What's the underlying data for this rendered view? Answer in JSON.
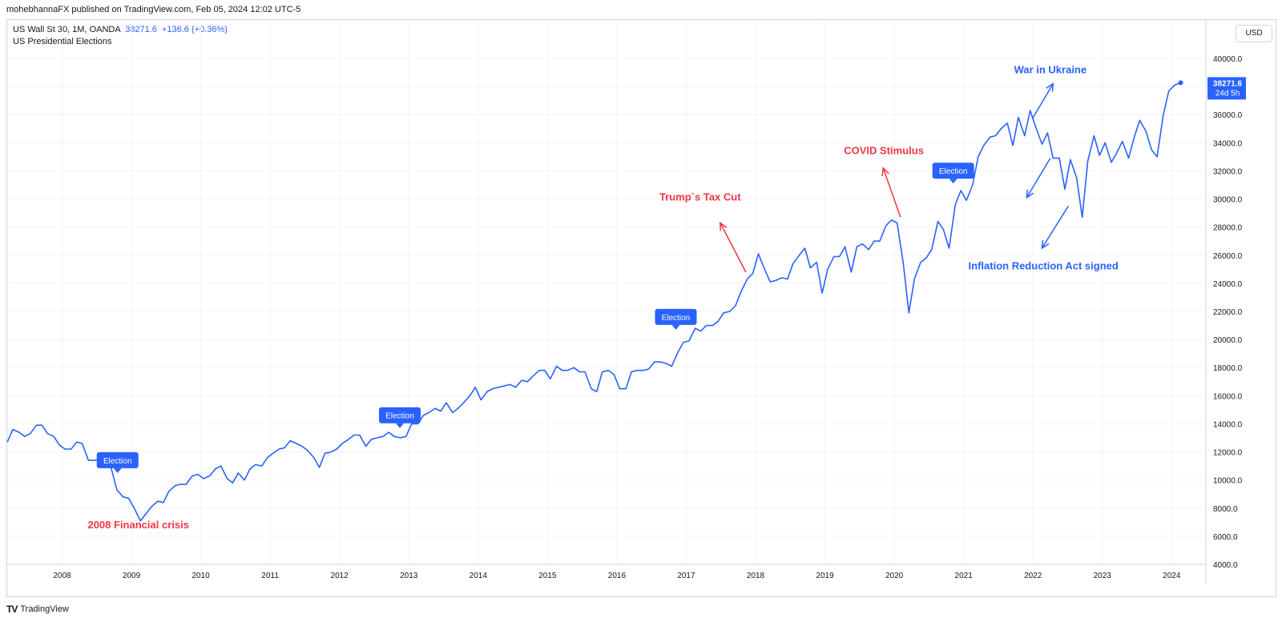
{
  "header": {
    "publisher": "mohebhannaFX published on TradingView.com, Feb 05, 2024 12:02 UTC-5"
  },
  "legend": {
    "symbol": "US Wall St 30, 1M, OANDA",
    "price": "38271.6",
    "change": "+136.6 (+0.36%)",
    "indicator": "US Presidential Elections"
  },
  "currency_button": "USD",
  "footer": {
    "brand": "TradingView",
    "logo": "TV"
  },
  "colors": {
    "line": "#2962ff",
    "red": "#f23645",
    "grid": "#f0f3fa",
    "label": "#2962ff"
  },
  "chart_data": {
    "type": "line",
    "ylim": [
      4000,
      41000
    ],
    "xlim": [
      2007.2,
      2024.45
    ],
    "y_ticks": [
      4000,
      6000,
      8000,
      10000,
      12000,
      14000,
      16000,
      18000,
      20000,
      22000,
      24000,
      26000,
      28000,
      30000,
      32000,
      34000,
      36000,
      38000,
      40000
    ],
    "y_tick_labels": [
      "4000.0",
      "6000.0",
      "8000.0",
      "10000.0",
      "12000.0",
      "14000.0",
      "16000.0",
      "18000.0",
      "20000.0",
      "22000.0",
      "24000.0",
      "26000.0",
      "28000.0",
      "30000.0",
      "32000.0",
      "34000.0",
      "36000.0",
      "38000.0",
      "40000.0"
    ],
    "x_ticks": [
      2008,
      2009,
      2010,
      2011,
      2012,
      2013,
      2014,
      2015,
      2016,
      2017,
      2018,
      2019,
      2020,
      2021,
      2022,
      2023,
      2024
    ],
    "x_tick_labels": [
      "2008",
      "2009",
      "2010",
      "2011",
      "2012",
      "2013",
      "2014",
      "2015",
      "2016",
      "2017",
      "2018",
      "2019",
      "2020",
      "2021",
      "2022",
      "2023",
      "2024"
    ],
    "grid": true,
    "series": [
      {
        "x": [
          2007.21,
          2007.29,
          2007.38,
          2007.46,
          2007.54,
          2007.63,
          2007.71,
          2007.79,
          2007.88,
          2007.96,
          2008.04,
          2008.13,
          2008.21,
          2008.29,
          2008.38,
          2008.46,
          2008.54,
          2008.63,
          2008.71,
          2008.79,
          2008.88,
          2008.96,
          2009.04,
          2009.13,
          2009.21,
          2009.29,
          2009.38,
          2009.46,
          2009.54,
          2009.63,
          2009.71,
          2009.79,
          2009.88,
          2009.96,
          2010.04,
          2010.13,
          2010.21,
          2010.29,
          2010.38,
          2010.46,
          2010.54,
          2010.63,
          2010.71,
          2010.79,
          2010.88,
          2010.96,
          2011.04,
          2011.13,
          2011.21,
          2011.29,
          2011.38,
          2011.46,
          2011.54,
          2011.63,
          2011.71,
          2011.79,
          2011.88,
          2011.96,
          2012.04,
          2012.13,
          2012.21,
          2012.29,
          2012.38,
          2012.46,
          2012.54,
          2012.63,
          2012.71,
          2012.79,
          2012.88,
          2012.96,
          2013.04,
          2013.13,
          2013.21,
          2013.29,
          2013.38,
          2013.46,
          2013.54,
          2013.63,
          2013.71,
          2013.79,
          2013.88,
          2013.96,
          2014.04,
          2014.13,
          2014.21,
          2014.29,
          2014.38,
          2014.46,
          2014.54,
          2014.63,
          2014.71,
          2014.79,
          2014.88,
          2014.96,
          2015.04,
          2015.13,
          2015.21,
          2015.29,
          2015.38,
          2015.46,
          2015.54,
          2015.63,
          2015.71,
          2015.79,
          2015.88,
          2015.96,
          2016.04,
          2016.13,
          2016.21,
          2016.29,
          2016.38,
          2016.46,
          2016.54,
          2016.63,
          2016.71,
          2016.79,
          2016.88,
          2016.96,
          2017.04,
          2017.13,
          2017.21,
          2017.29,
          2017.38,
          2017.46,
          2017.54,
          2017.63,
          2017.71,
          2017.79,
          2017.88,
          2017.96,
          2018.04,
          2018.13,
          2018.21,
          2018.29,
          2018.38,
          2018.46,
          2018.54,
          2018.63,
          2018.71,
          2018.79,
          2018.88,
          2018.96,
          2019.04,
          2019.13,
          2019.21,
          2019.29,
          2019.38,
          2019.46,
          2019.54,
          2019.63,
          2019.71,
          2019.79,
          2019.88,
          2019.96,
          2020.04,
          2020.13,
          2020.21,
          2020.29,
          2020.38,
          2020.46,
          2020.54,
          2020.63,
          2020.71,
          2020.79,
          2020.88,
          2020.96,
          2021.04,
          2021.13,
          2021.21,
          2021.29,
          2021.38,
          2021.46,
          2021.54,
          2021.63,
          2021.71,
          2021.79,
          2021.88,
          2021.96,
          2022.04,
          2022.13,
          2022.21,
          2022.29,
          2022.38,
          2022.46,
          2022.54,
          2022.63,
          2022.71,
          2022.79,
          2022.88,
          2022.96,
          2023.04,
          2023.13,
          2023.21,
          2023.29,
          2023.38,
          2023.46,
          2023.54,
          2023.63,
          2023.71,
          2023.79,
          2023.88,
          2023.96,
          2024.04,
          2024.13
        ],
        "values": [
          12700,
          13600,
          13400,
          13100,
          13300,
          13900,
          13900,
          13300,
          13100,
          12500,
          12200,
          12200,
          12700,
          12600,
          11400,
          11400,
          11500,
          11600,
          10800,
          9300,
          8800,
          8700,
          8000,
          7100,
          7600,
          8100,
          8500,
          8400,
          9200,
          9600,
          9700,
          9700,
          10300,
          10400,
          10100,
          10300,
          10800,
          11000,
          10100,
          9800,
          10500,
          10000,
          10800,
          11100,
          11000,
          11600,
          11900,
          12200,
          12300,
          12800,
          12600,
          12400,
          12100,
          11600,
          10900,
          11900,
          12000,
          12200,
          12600,
          12900,
          13200,
          13200,
          12400,
          12900,
          13000,
          13100,
          13400,
          13100,
          13000,
          13100,
          14000,
          14000,
          14600,
          14800,
          15100,
          14900,
          15500,
          14800,
          15100,
          15500,
          16000,
          16600,
          15700,
          16300,
          16500,
          16600,
          16700,
          16800,
          16600,
          17100,
          17000,
          17400,
          17800,
          17800,
          17200,
          18100,
          17800,
          17800,
          18000,
          17700,
          17700,
          16500,
          16300,
          17700,
          17800,
          17500,
          16500,
          16500,
          17700,
          17800,
          17800,
          17900,
          18400,
          18400,
          18300,
          18100,
          19100,
          19800,
          19900,
          20800,
          20600,
          21000,
          21000,
          21300,
          21900,
          22000,
          22400,
          23400,
          24300,
          24700,
          26100,
          25000,
          24100,
          24200,
          24400,
          24300,
          25400,
          26000,
          26500,
          25100,
          25500,
          23300,
          25000,
          25900,
          25900,
          26600,
          24800,
          26600,
          26800,
          26400,
          27000,
          27000,
          28100,
          28500,
          28300,
          25400,
          21900,
          24300,
          25500,
          25800,
          26400,
          28400,
          27800,
          26500,
          29600,
          30600,
          29900,
          31000,
          33000,
          33800,
          34400,
          34500,
          35000,
          35400,
          33800,
          35800,
          34500,
          36300,
          35100,
          33900,
          34700,
          32900,
          32900,
          30700,
          32800,
          31500,
          28700,
          32700,
          34500,
          33100,
          34000,
          32600,
          33300,
          34100,
          32900,
          34400,
          35600,
          34800,
          33500,
          33000,
          36000,
          37700,
          38100,
          38271.6
        ]
      }
    ],
    "last_value": {
      "price": "38271.6",
      "countdown": "24d 5h"
    },
    "election_labels": [
      {
        "text": "Election",
        "x": 2008.8,
        "y": 10500
      },
      {
        "text": "Election",
        "x": 2012.87,
        "y": 13700
      },
      {
        "text": "Election",
        "x": 2016.85,
        "y": 20700
      },
      {
        "text": "Election",
        "x": 2020.85,
        "y": 31100
      }
    ],
    "annotations": [
      {
        "text": "2008 Financial crisis",
        "x": 2009.1,
        "y": 6550,
        "color": "#f23645"
      },
      {
        "text": "Trump`s Tax Cut",
        "x": 2017.2,
        "y": 29900,
        "color": "#f23645"
      },
      {
        "text": "COVID Stimulus",
        "x": 2019.85,
        "y": 33200,
        "color": "#f23645"
      },
      {
        "text": "War in Ukraine",
        "x": 2022.25,
        "y": 38950,
        "color": "#2962ff"
      },
      {
        "text": "Inflation Reduction Act signed",
        "x": 2022.15,
        "y": 25000,
        "color": "#2962ff"
      }
    ],
    "arrows": [
      {
        "from": [
          2017.86,
          24800
        ],
        "to": [
          2017.49,
          28300
        ],
        "color": "#f23645"
      },
      {
        "from": [
          2020.09,
          28700
        ],
        "to": [
          2019.84,
          32200
        ],
        "color": "#f23645"
      },
      {
        "from": [
          2021.99,
          35700
        ],
        "to": [
          2022.29,
          38200
        ],
        "color": "#2962ff"
      },
      {
        "from": [
          2022.25,
          32900
        ],
        "to": [
          2021.91,
          30100
        ],
        "color": "#2962ff"
      },
      {
        "from": [
          2022.51,
          29500
        ],
        "to": [
          2022.13,
          26500
        ],
        "color": "#2962ff"
      }
    ]
  }
}
